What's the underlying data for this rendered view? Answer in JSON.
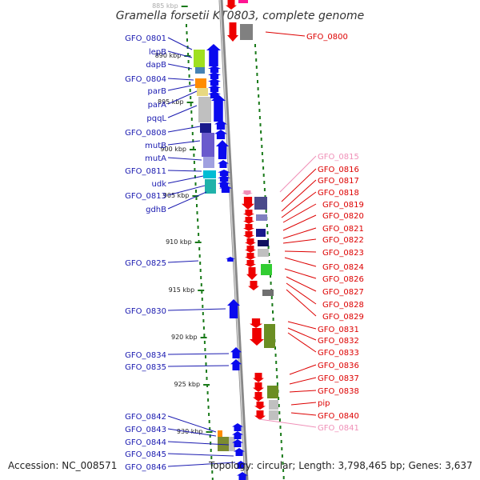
{
  "title": "Gramella forsetii KT0803, complete genome",
  "footer": {
    "accession": "Accession: NC_008571",
    "topology": "Topology: circular; Length: 3,798,465 bp; Genes: 3,637"
  },
  "colors": {
    "left_label": "#1a1ab0",
    "right_label": "#dd0000",
    "right_label_pale": "#f090b8",
    "backbone": "#999999",
    "tick": "#1a7a1a",
    "forward_gene": "#0a0aee",
    "reverse_gene": "#ee0000"
  },
  "ticks": [
    {
      "label": "885 kbp"
    },
    {
      "label": "890 kbp"
    },
    {
      "label": "895 kbp"
    },
    {
      "label": "900 kbp"
    },
    {
      "label": "905 kbp"
    },
    {
      "label": "910 kbp"
    },
    {
      "label": "915 kbp"
    },
    {
      "label": "920 kbp"
    },
    {
      "label": "925 kbp"
    },
    {
      "label": "930 kbp"
    }
  ],
  "left_labels": [
    "GFO_0801",
    "lepB",
    "dapB",
    "GFO_0804",
    "parB",
    "parA",
    "pqqL",
    "GFO_0808",
    "mutB",
    "mutA",
    "GFO_0811",
    "udk",
    "GFO_0813",
    "gdhB",
    "GFO_0825",
    "GFO_0830",
    "GFO_0834",
    "GFO_0835",
    "GFO_0842",
    "GFO_0843",
    "GFO_0844",
    "GFO_0845",
    "GFO_0846"
  ],
  "right_labels": [
    "GFO_0800",
    "GFO_0815",
    "GFO_0816",
    "GFO_0817",
    "GFO_0818",
    "GFO_0819",
    "GFO_0820",
    "GFO_0821",
    "GFO_0822",
    "GFO_0823",
    "GFO_0824",
    "GFO_0826",
    "GFO_0827",
    "GFO_0828",
    "GFO_0829",
    "GFO_0831",
    "GFO_0832",
    "GFO_0833",
    "GFO_0836",
    "GFO_0837",
    "GFO_0838",
    "pip",
    "GFO_0840",
    "GFO_0841"
  ]
}
